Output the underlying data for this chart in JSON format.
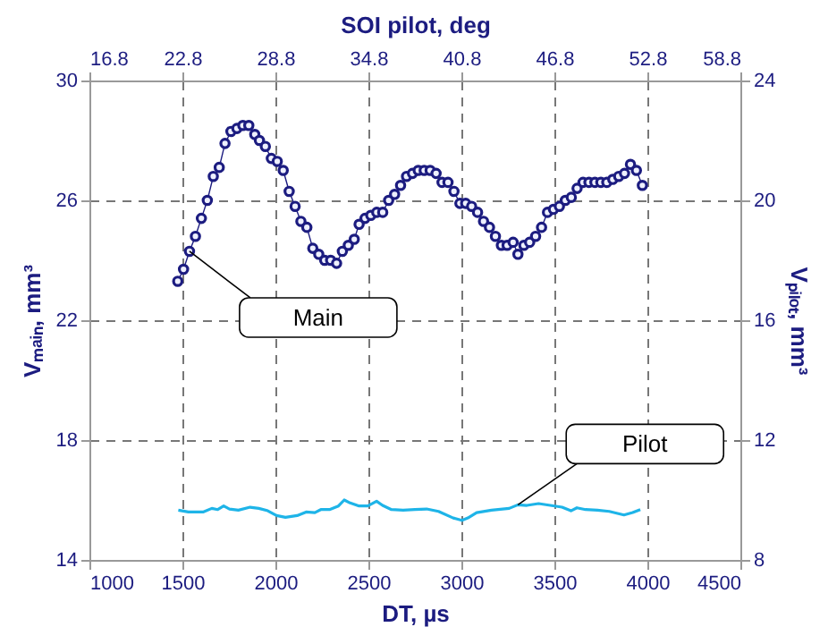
{
  "chart_data": {
    "type": "line",
    "xlabel": "DT, µs",
    "ylabel": "Vₘₐᵢₙ, mm³",
    "y2label": "Vₚᵢₗₒₜ, mm³",
    "x2label": "SOI pilot, deg",
    "xlim": [
      1000,
      4500
    ],
    "xticks": [
      1000,
      1500,
      2000,
      2500,
      3000,
      3500,
      4000,
      4500
    ],
    "x2lim": [
      16.8,
      58.8
    ],
    "x2ticks": [
      16.8,
      22.8,
      28.8,
      34.8,
      40.8,
      46.8,
      52.8,
      58.8
    ],
    "ylim": [
      14,
      30
    ],
    "yticks": [
      14,
      18,
      22,
      26,
      30
    ],
    "y2lim": [
      8,
      24
    ],
    "y2ticks": [
      8,
      12,
      16,
      20,
      24
    ],
    "grid": true,
    "legend": false,
    "series": [
      {
        "name": "Main",
        "color": "#1c1c80",
        "marker": "circle",
        "axis": "y",
        "x": [
          1475,
          1506,
          1538,
          1570,
          1602,
          1634,
          1666,
          1698,
          1729,
          1761,
          1793,
          1825,
          1857,
          1889,
          1914,
          1946,
          1978,
          2010,
          2042,
          2074,
          2106,
          2137,
          2169,
          2201,
          2233,
          2265,
          2297,
          2329,
          2360,
          2392,
          2424,
          2450,
          2482,
          2513,
          2545,
          2577,
          2609,
          2641,
          2673,
          2705,
          2737,
          2768,
          2800,
          2832,
          2864,
          2896,
          2928,
          2960,
          2992,
          3023,
          3055,
          3087,
          3119,
          3151,
          3183,
          3215,
          3246,
          3278,
          3304,
          3336,
          3367,
          3399,
          3431,
          3463,
          3495,
          3527,
          3559,
          3591,
          3622,
          3654,
          3686,
          3718,
          3750,
          3782,
          3814,
          3846,
          3877,
          3909,
          3941,
          3973
        ],
        "values": [
          23.3,
          23.7,
          24.3,
          24.8,
          25.4,
          26.0,
          26.8,
          27.1,
          27.9,
          28.3,
          28.4,
          28.5,
          28.5,
          28.2,
          28.0,
          27.8,
          27.4,
          27.3,
          27.0,
          26.3,
          25.8,
          25.3,
          25.1,
          24.4,
          24.2,
          24.0,
          24.0,
          23.9,
          24.3,
          24.5,
          24.7,
          25.2,
          25.4,
          25.5,
          25.6,
          25.6,
          26.0,
          26.2,
          26.5,
          26.8,
          26.9,
          27.0,
          27.0,
          27.0,
          26.9,
          26.6,
          26.6,
          26.3,
          25.9,
          25.9,
          25.8,
          25.6,
          25.3,
          25.1,
          24.8,
          24.5,
          24.5,
          24.6,
          24.2,
          24.5,
          24.6,
          24.8,
          25.1,
          25.6,
          25.7,
          25.8,
          26.0,
          26.1,
          26.4,
          26.6,
          26.6,
          26.6,
          26.6,
          26.6,
          26.7,
          26.8,
          26.9,
          27.2,
          27.0,
          26.5
        ]
      },
      {
        "name": "Pilot",
        "color": "#1eb4e8",
        "marker": "none",
        "axis": "y2",
        "x": [
          1478,
          1532,
          1611,
          1658,
          1690,
          1722,
          1753,
          1801,
          1864,
          1911,
          1959,
          2006,
          2054,
          2117,
          2165,
          2212,
          2244,
          2291,
          2339,
          2370,
          2402,
          2450,
          2497,
          2544,
          2576,
          2624,
          2687,
          2750,
          2813,
          2877,
          2956,
          3003,
          3035,
          3082,
          3162,
          3257,
          3304,
          3352,
          3415,
          3478,
          3541,
          3589,
          3621,
          3668,
          3731,
          3795,
          3874,
          3921,
          3962
        ],
        "values": [
          9.66,
          9.6,
          9.6,
          9.72,
          9.68,
          9.8,
          9.7,
          9.66,
          9.76,
          9.72,
          9.64,
          9.48,
          9.42,
          9.48,
          9.6,
          9.58,
          9.68,
          9.68,
          9.8,
          10.0,
          9.9,
          9.8,
          9.8,
          9.96,
          9.82,
          9.68,
          9.66,
          9.68,
          9.7,
          9.62,
          9.4,
          9.32,
          9.4,
          9.58,
          9.66,
          9.72,
          9.84,
          9.82,
          9.88,
          9.82,
          9.76,
          9.64,
          9.74,
          9.68,
          9.66,
          9.62,
          9.5,
          9.58,
          9.68
        ]
      }
    ]
  }
}
